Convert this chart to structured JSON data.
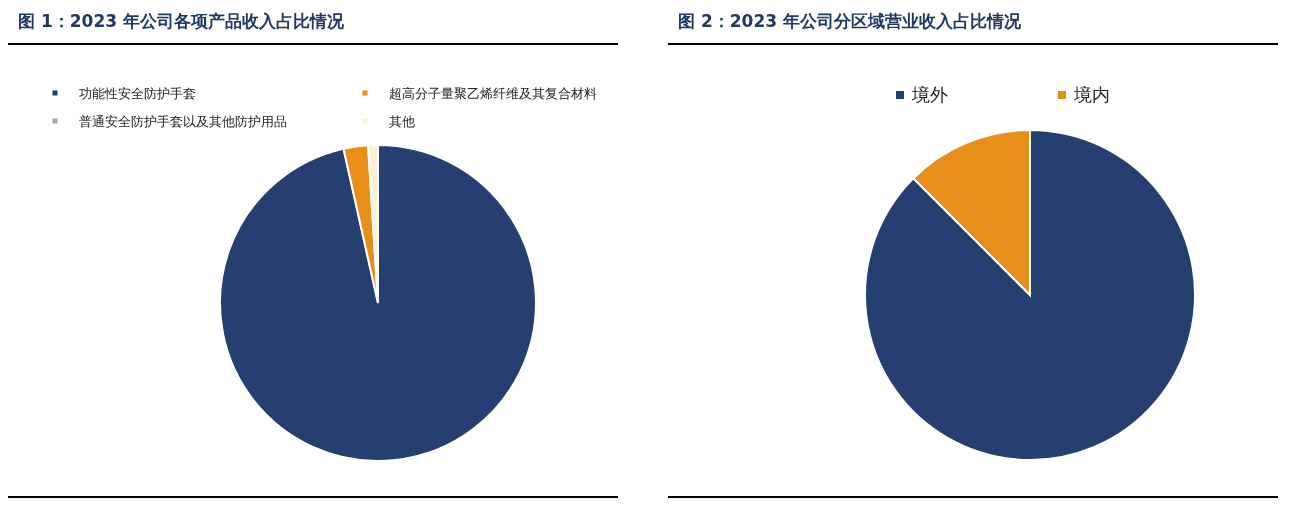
{
  "chart_data": [
    {
      "type": "pie",
      "title": "图 1：2023 年公司各项产品收入占比情况",
      "categories": [
        "功能性安全防护手套",
        "超高分子量聚乙烯纤维及其复合材料",
        "普通安全防护手套以及其他防护用品",
        "其他"
      ],
      "values": [
        96.5,
        2.5,
        0,
        1
      ],
      "colors": [
        "#253f70",
        "#e88f1a",
        "#a6a6a6",
        "#fdf0d5"
      ],
      "legend": "top"
    },
    {
      "type": "pie",
      "title": "图 2：2023 年公司分区域营业收入占比情况",
      "categories": [
        "境外",
        "境内"
      ],
      "values": [
        87.5,
        12.5
      ],
      "colors": [
        "#253f70",
        "#e88f1a"
      ],
      "legend": "top"
    }
  ]
}
